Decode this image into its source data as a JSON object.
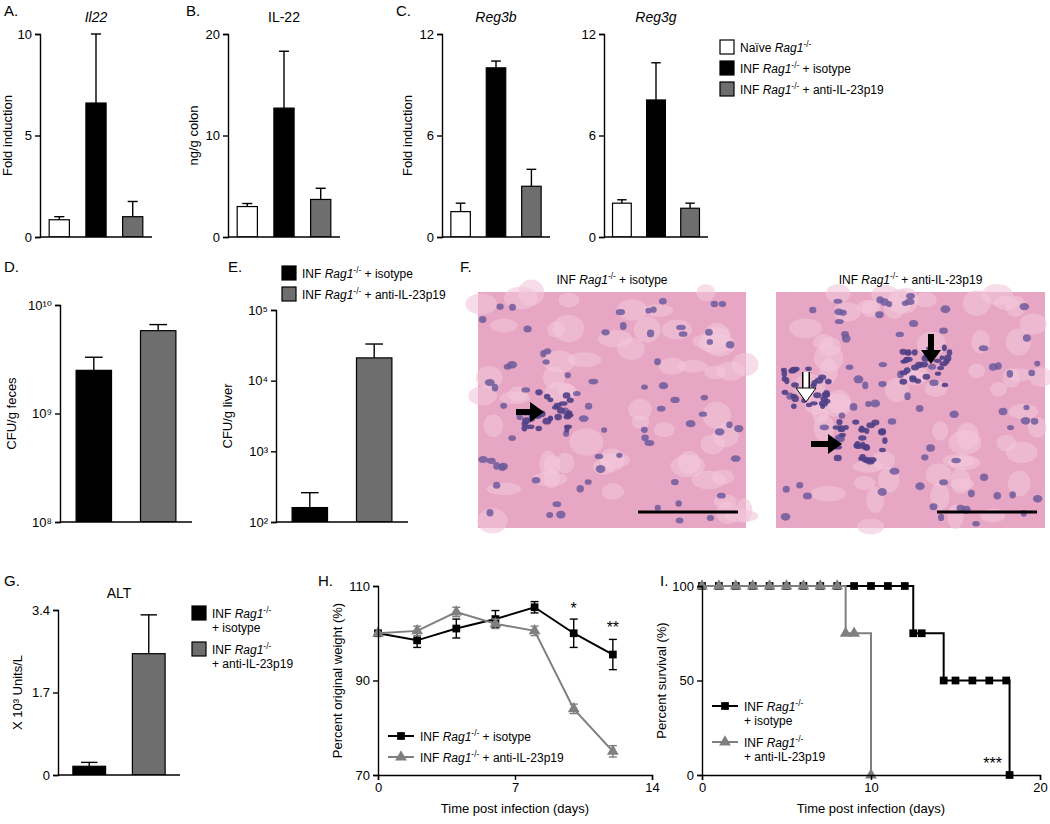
{
  "chart_data": [
    {
      "type": "bar",
      "panel": "A.",
      "title": "Il22",
      "ylabel": "Fold induction",
      "ylim": [
        0,
        10
      ],
      "yticks": [
        0,
        5,
        10
      ],
      "series": [
        {
          "color": "#ffffff",
          "values": [
            0.85
          ],
          "errors": [
            0.15
          ]
        },
        {
          "color": "#000000",
          "values": [
            6.6
          ],
          "errors": [
            3.4
          ]
        },
        {
          "color": "#6e6e6e",
          "values": [
            1.0
          ],
          "errors": [
            0.75
          ]
        }
      ]
    },
    {
      "type": "bar",
      "panel": "B.",
      "title": "IL-22",
      "ylabel": "ng/g colon",
      "ylim": [
        0,
        20
      ],
      "yticks": [
        0,
        10,
        20
      ],
      "series": [
        {
          "color": "#ffffff",
          "values": [
            3.0
          ],
          "errors": [
            0.3
          ]
        },
        {
          "color": "#000000",
          "values": [
            12.7
          ],
          "errors": [
            5.6
          ]
        },
        {
          "color": "#6e6e6e",
          "values": [
            3.7
          ],
          "errors": [
            1.1
          ]
        }
      ]
    },
    {
      "type": "bar",
      "panel": "C.",
      "title": "Reg3b",
      "ylabel": "Fold induction",
      "ylim": [
        0,
        12
      ],
      "yticks": [
        0,
        6,
        12
      ],
      "series": [
        {
          "color": "#ffffff",
          "values": [
            1.5
          ],
          "errors": [
            0.5
          ]
        },
        {
          "color": "#000000",
          "values": [
            10.0
          ],
          "errors": [
            0.4
          ]
        },
        {
          "color": "#6e6e6e",
          "values": [
            3.0
          ],
          "errors": [
            1.0
          ]
        }
      ]
    },
    {
      "type": "bar",
      "title": "Reg3g",
      "ylim": [
        0,
        12
      ],
      "yticks": [
        0,
        6,
        12
      ],
      "legend": "right",
      "series": [
        {
          "name": "Naïve Rag1-/-",
          "color": "#ffffff",
          "values": [
            2.0
          ],
          "errors": [
            0.2
          ]
        },
        {
          "name": "INF Rag1-/- + isotype",
          "color": "#000000",
          "values": [
            8.1
          ],
          "errors": [
            2.2
          ]
        },
        {
          "name": "INF Rag1-/- + anti-IL-23p19",
          "color": "#6e6e6e",
          "values": [
            1.7
          ],
          "errors": [
            0.3
          ]
        }
      ]
    },
    {
      "type": "bar",
      "panel": "D.",
      "ylabel": "CFU/g feces",
      "log": "y",
      "ylim": [
        100000000,
        10000000000
      ],
      "yticks": [
        {
          "value": 100000000,
          "label": "10⁸"
        },
        {
          "value": 1000000000,
          "label": "10⁹"
        },
        {
          "value": 10000000000,
          "label": "10¹⁰"
        }
      ],
      "series": [
        {
          "color": "#000000",
          "values": [
            2500000000
          ],
          "errors": [
            800000000
          ]
        },
        {
          "color": "#6e6e6e",
          "values": [
            5800000000
          ],
          "errors": [
            800000000
          ]
        }
      ]
    },
    {
      "type": "bar",
      "panel": "E.",
      "ylabel": "CFU/g liver",
      "log": "y",
      "ylim": [
        100,
        100000
      ],
      "legend": "top",
      "yticks": [
        {
          "value": 100,
          "label": "10²"
        },
        {
          "value": 1000,
          "label": "10³"
        },
        {
          "value": 10000,
          "label": "10⁴"
        },
        {
          "value": 100000,
          "label": "10⁵"
        }
      ],
      "series": [
        {
          "name": "INF Rag1-/- + isotype",
          "color": "#000000",
          "values": [
            160
          ],
          "errors": [
            100
          ]
        },
        {
          "name": "INF Rag1-/- + anti-IL-23p19",
          "color": "#6e6e6e",
          "values": [
            21000
          ],
          "errors": [
            12000
          ]
        }
      ]
    },
    {
      "type": "image",
      "panel": "F.",
      "images": [
        {
          "title": "INF Rag1-/- + isotype"
        },
        {
          "title": "INF Rag1-/- + anti-IL-23p19"
        }
      ]
    },
    {
      "type": "bar",
      "panel": "G.",
      "title": "ALT",
      "ylabel": "X 10³ Units/L",
      "ylim": [
        0,
        3.4
      ],
      "yticks": [
        0,
        1.7,
        3.4
      ],
      "legend": "right",
      "series": [
        {
          "name": "INF Rag1-/- + isotype",
          "color": "#000000",
          "values": [
            0.18
          ],
          "errors": [
            0.08
          ]
        },
        {
          "name": "INF Rag1-/- + anti-IL-23p19",
          "color": "#6e6e6e",
          "values": [
            2.5
          ],
          "errors": [
            0.8
          ]
        }
      ]
    },
    {
      "type": "line",
      "panel": "H.",
      "xlabel": "Time post infection (days)",
      "ylabel": "Percent original weight (%)",
      "xlim": [
        0,
        14
      ],
      "xticks": [
        0,
        7,
        14
      ],
      "ylim": [
        70,
        110
      ],
      "yticks": [
        70,
        90,
        110
      ],
      "legend": "lower left",
      "x": [
        0,
        2,
        4,
        6,
        8,
        10,
        12
      ],
      "series": [
        {
          "name": "INF Rag1-/- + isotype",
          "color": "#000000",
          "marker": "square",
          "values": [
            100,
            98.5,
            101,
            103,
            105.5,
            100,
            95.5
          ],
          "errors": [
            0,
            1.5,
            2,
            1.8,
            1.2,
            3,
            3.2
          ]
        },
        {
          "name": "INF Rag1-/- + anti-IL-23p19",
          "color": "#7f7f7f",
          "marker": "triangle",
          "values": [
            100,
            100.5,
            104.5,
            102,
            100.5,
            84,
            75
          ],
          "errors": [
            0,
            1,
            1,
            1,
            1,
            1,
            1.2
          ]
        }
      ],
      "annotations": [
        {
          "text": "*",
          "x": 10,
          "y": 104
        },
        {
          "text": "**",
          "x": 12,
          "y": 100
        }
      ]
    },
    {
      "type": "line",
      "panel": "I.",
      "xlabel": "Time post infection (days)",
      "ylabel": "Percent survival (%)",
      "xlim": [
        0,
        20
      ],
      "xticks": [
        0,
        10,
        20
      ],
      "ylim": [
        0,
        100
      ],
      "yticks": [
        0,
        50,
        100
      ],
      "legend": "lower left",
      "line_style": "step",
      "series": [
        {
          "name": "INF Rag1-/- + isotype",
          "color": "#000000",
          "marker": "square",
          "x": [
            0,
            1,
            2,
            3,
            4,
            5,
            6,
            7,
            8,
            9,
            10,
            11,
            12,
            12.5,
            13,
            14.3,
            15,
            16,
            17,
            18,
            18.2
          ],
          "values": [
            100,
            100,
            100,
            100,
            100,
            100,
            100,
            100,
            100,
            100,
            100,
            100,
            100,
            75,
            75,
            50,
            50,
            50,
            50,
            50,
            0
          ]
        },
        {
          "name": "INF Rag1-/- + anti-IL-23p19",
          "color": "#7f7f7f",
          "marker": "triangle",
          "x": [
            0,
            1,
            2,
            3,
            4,
            5,
            6,
            7,
            8,
            8.5,
            9,
            10
          ],
          "values": [
            100,
            100,
            100,
            100,
            100,
            100,
            100,
            100,
            100,
            75,
            75,
            0
          ]
        }
      ],
      "annotations": [
        {
          "text": "***",
          "x": 17.2,
          "y": 3
        }
      ]
    }
  ]
}
